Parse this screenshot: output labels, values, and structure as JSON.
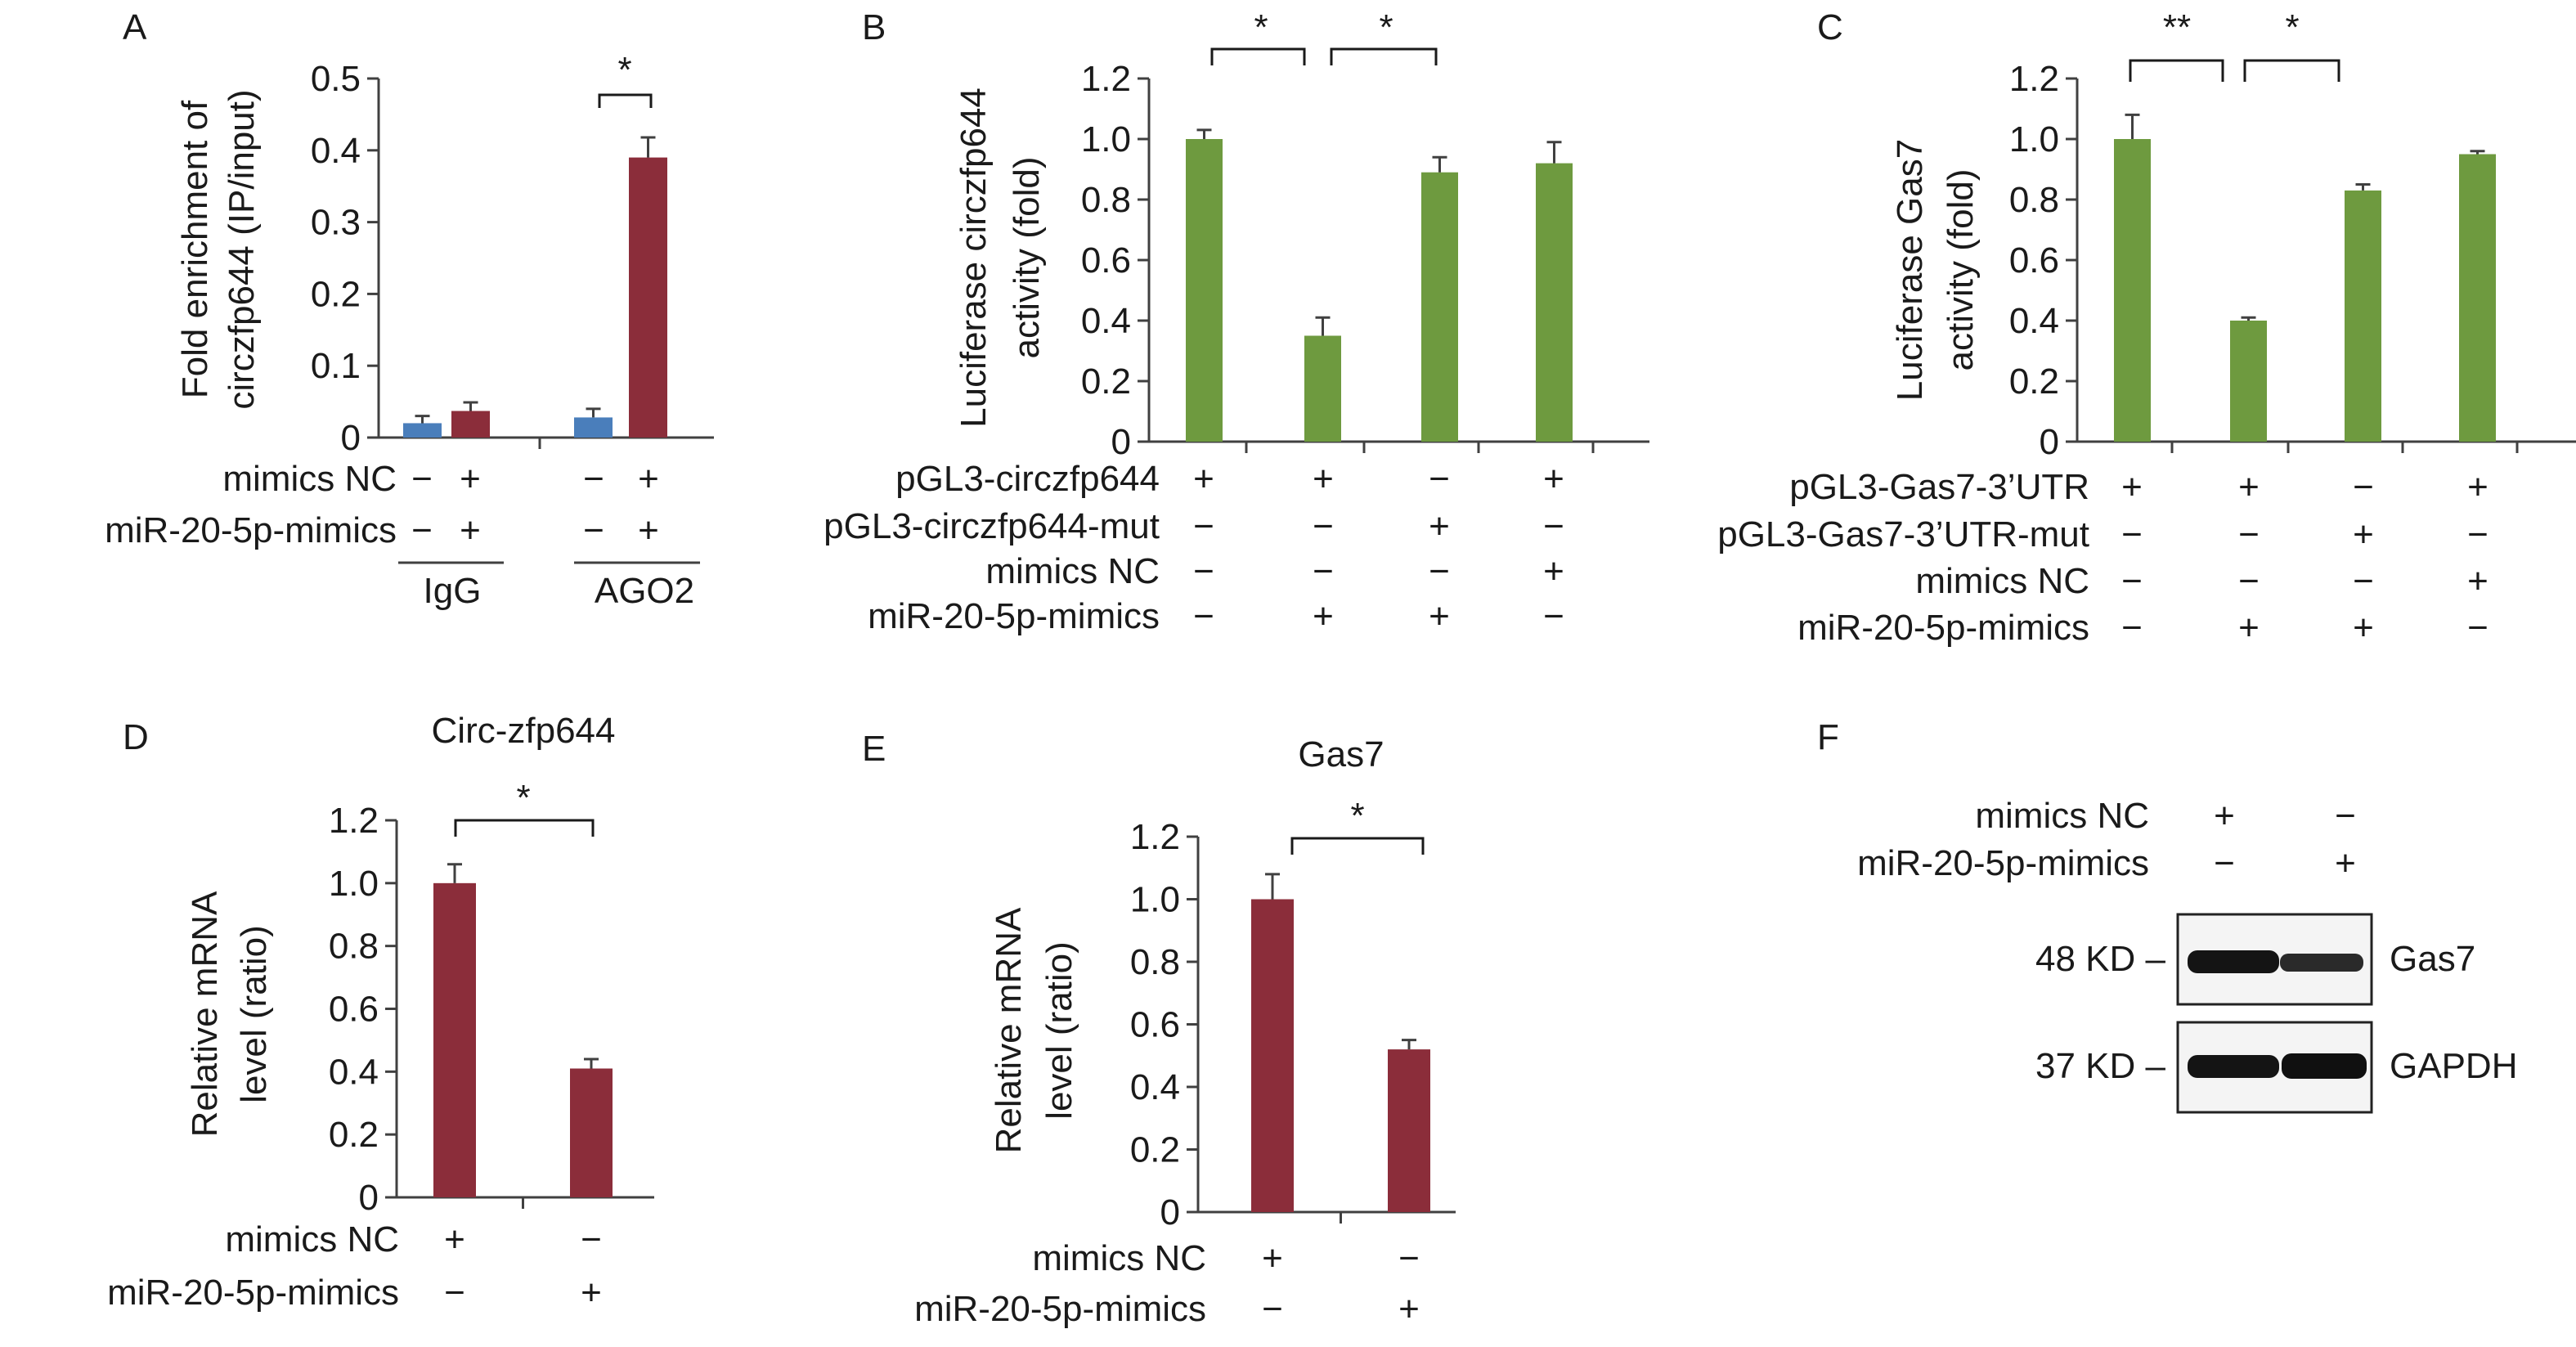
{
  "chart_data": [
    {
      "panel": "A",
      "type": "bar",
      "ylabel": [
        "Fold enrichment of",
        "circzfp644 (IP/input)"
      ],
      "ylim": [
        0,
        0.5
      ],
      "yticks": [
        "0",
        "0.1",
        "0.2",
        "0.3",
        "0.4",
        "0.5"
      ],
      "series": [
        {
          "name": "mimics NC",
          "color": "#4a7ebb",
          "values": [
            0.02,
            0.028
          ],
          "errors": [
            0.01,
            0.012
          ]
        },
        {
          "name": "miR-20-5p-mimics",
          "color": "#8b2d3a",
          "values": [
            0.037,
            0.39
          ],
          "errors": [
            0.012,
            0.028
          ]
        }
      ],
      "groups": [
        "IgG",
        "AGO2"
      ],
      "conditions": [
        {
          "label": "mimics NC",
          "signs": [
            "−",
            "+",
            "−",
            "+"
          ]
        },
        {
          "label": "miR-20-5p-mimics",
          "signs": [
            "−",
            "+",
            "−",
            "+"
          ]
        }
      ],
      "significance": [
        {
          "text": "*"
        }
      ]
    },
    {
      "panel": "B",
      "type": "bar",
      "ylabel": [
        "Luciferase circzfp644",
        "activity (fold)"
      ],
      "ylim": [
        0,
        1.2
      ],
      "yticks": [
        "0",
        "0.2",
        "0.4",
        "0.6",
        "0.8",
        "1.0",
        "1.2"
      ],
      "color": "#6e9a3f",
      "values": [
        1.0,
        0.35,
        0.89,
        0.92
      ],
      "errors": [
        0.03,
        0.06,
        0.05,
        0.07
      ],
      "conditions": [
        {
          "label": "pGL3-circzfp644",
          "signs": [
            "+",
            "+",
            "−",
            "+"
          ]
        },
        {
          "label": "pGL3-circzfp644-mut",
          "signs": [
            "−",
            "−",
            "+",
            "−"
          ]
        },
        {
          "label": "mimics NC",
          "signs": [
            "−",
            "−",
            "−",
            "+"
          ]
        },
        {
          "label": "miR-20-5p-mimics",
          "signs": [
            "−",
            "+",
            "+",
            "−"
          ]
        }
      ],
      "significance": [
        {
          "text": "*"
        },
        {
          "text": "*"
        }
      ]
    },
    {
      "panel": "C",
      "type": "bar",
      "ylabel": [
        "Luciferase Gas7",
        "activity (fold)"
      ],
      "ylim": [
        0,
        1.2
      ],
      "yticks": [
        "0",
        "0.2",
        "0.4",
        "0.6",
        "0.8",
        "1.0",
        "1.2"
      ],
      "color": "#6e9a3f",
      "values": [
        1.0,
        0.4,
        0.83,
        0.95
      ],
      "errors": [
        0.08,
        0.01,
        0.02,
        0.01
      ],
      "conditions": [
        {
          "label": "pGL3-Gas7-3’UTR",
          "signs": [
            "+",
            "+",
            "−",
            "+"
          ]
        },
        {
          "label": "pGL3-Gas7-3’UTR-mut",
          "signs": [
            "−",
            "−",
            "+",
            "−"
          ]
        },
        {
          "label": "mimics NC",
          "signs": [
            "−",
            "−",
            "−",
            "+"
          ]
        },
        {
          "label": "miR-20-5p-mimics",
          "signs": [
            "−",
            "+",
            "+",
            "−"
          ]
        }
      ],
      "significance": [
        {
          "text": "**"
        },
        {
          "text": "*"
        }
      ]
    },
    {
      "panel": "D",
      "type": "bar",
      "title": "Circ-zfp644",
      "ylabel": [
        "Relative mRNA",
        "level (ratio)"
      ],
      "ylim": [
        0,
        1.2
      ],
      "yticks": [
        "0",
        "0.2",
        "0.4",
        "0.6",
        "0.8",
        "1.0",
        "1.2"
      ],
      "color": "#8b2d3a",
      "values": [
        1.0,
        0.41
      ],
      "errors": [
        0.06,
        0.03
      ],
      "conditions": [
        {
          "label": "mimics NC",
          "signs": [
            "+",
            "−"
          ]
        },
        {
          "label": "miR-20-5p-mimics",
          "signs": [
            "−",
            "+"
          ]
        }
      ],
      "significance": [
        {
          "text": "*"
        }
      ]
    },
    {
      "panel": "E",
      "type": "bar",
      "title": "Gas7",
      "ylabel": [
        "Relative mRNA",
        "level (ratio)"
      ],
      "ylim": [
        0,
        1.2
      ],
      "yticks": [
        "0",
        "0.2",
        "0.4",
        "0.6",
        "0.8",
        "1.0",
        "1.2"
      ],
      "color": "#8b2d3a",
      "values": [
        1.0,
        0.52
      ],
      "errors": [
        0.08,
        0.03
      ],
      "conditions": [
        {
          "label": "mimics NC",
          "signs": [
            "+",
            "−"
          ]
        },
        {
          "label": "miR-20-5p-mimics",
          "signs": [
            "−",
            "+"
          ]
        }
      ],
      "significance": [
        {
          "text": "*"
        }
      ]
    }
  ],
  "western_blot": {
    "panel": "F",
    "conditions": [
      {
        "label": "mimics NC",
        "signs": [
          "+",
          "−"
        ]
      },
      {
        "label": "miR-20-5p-mimics",
        "signs": [
          "−",
          "+"
        ]
      }
    ],
    "bands": [
      {
        "marker": "48 KD –",
        "protein": "Gas7"
      },
      {
        "marker": "37 KD –",
        "protein": "GAPDH"
      }
    ]
  }
}
